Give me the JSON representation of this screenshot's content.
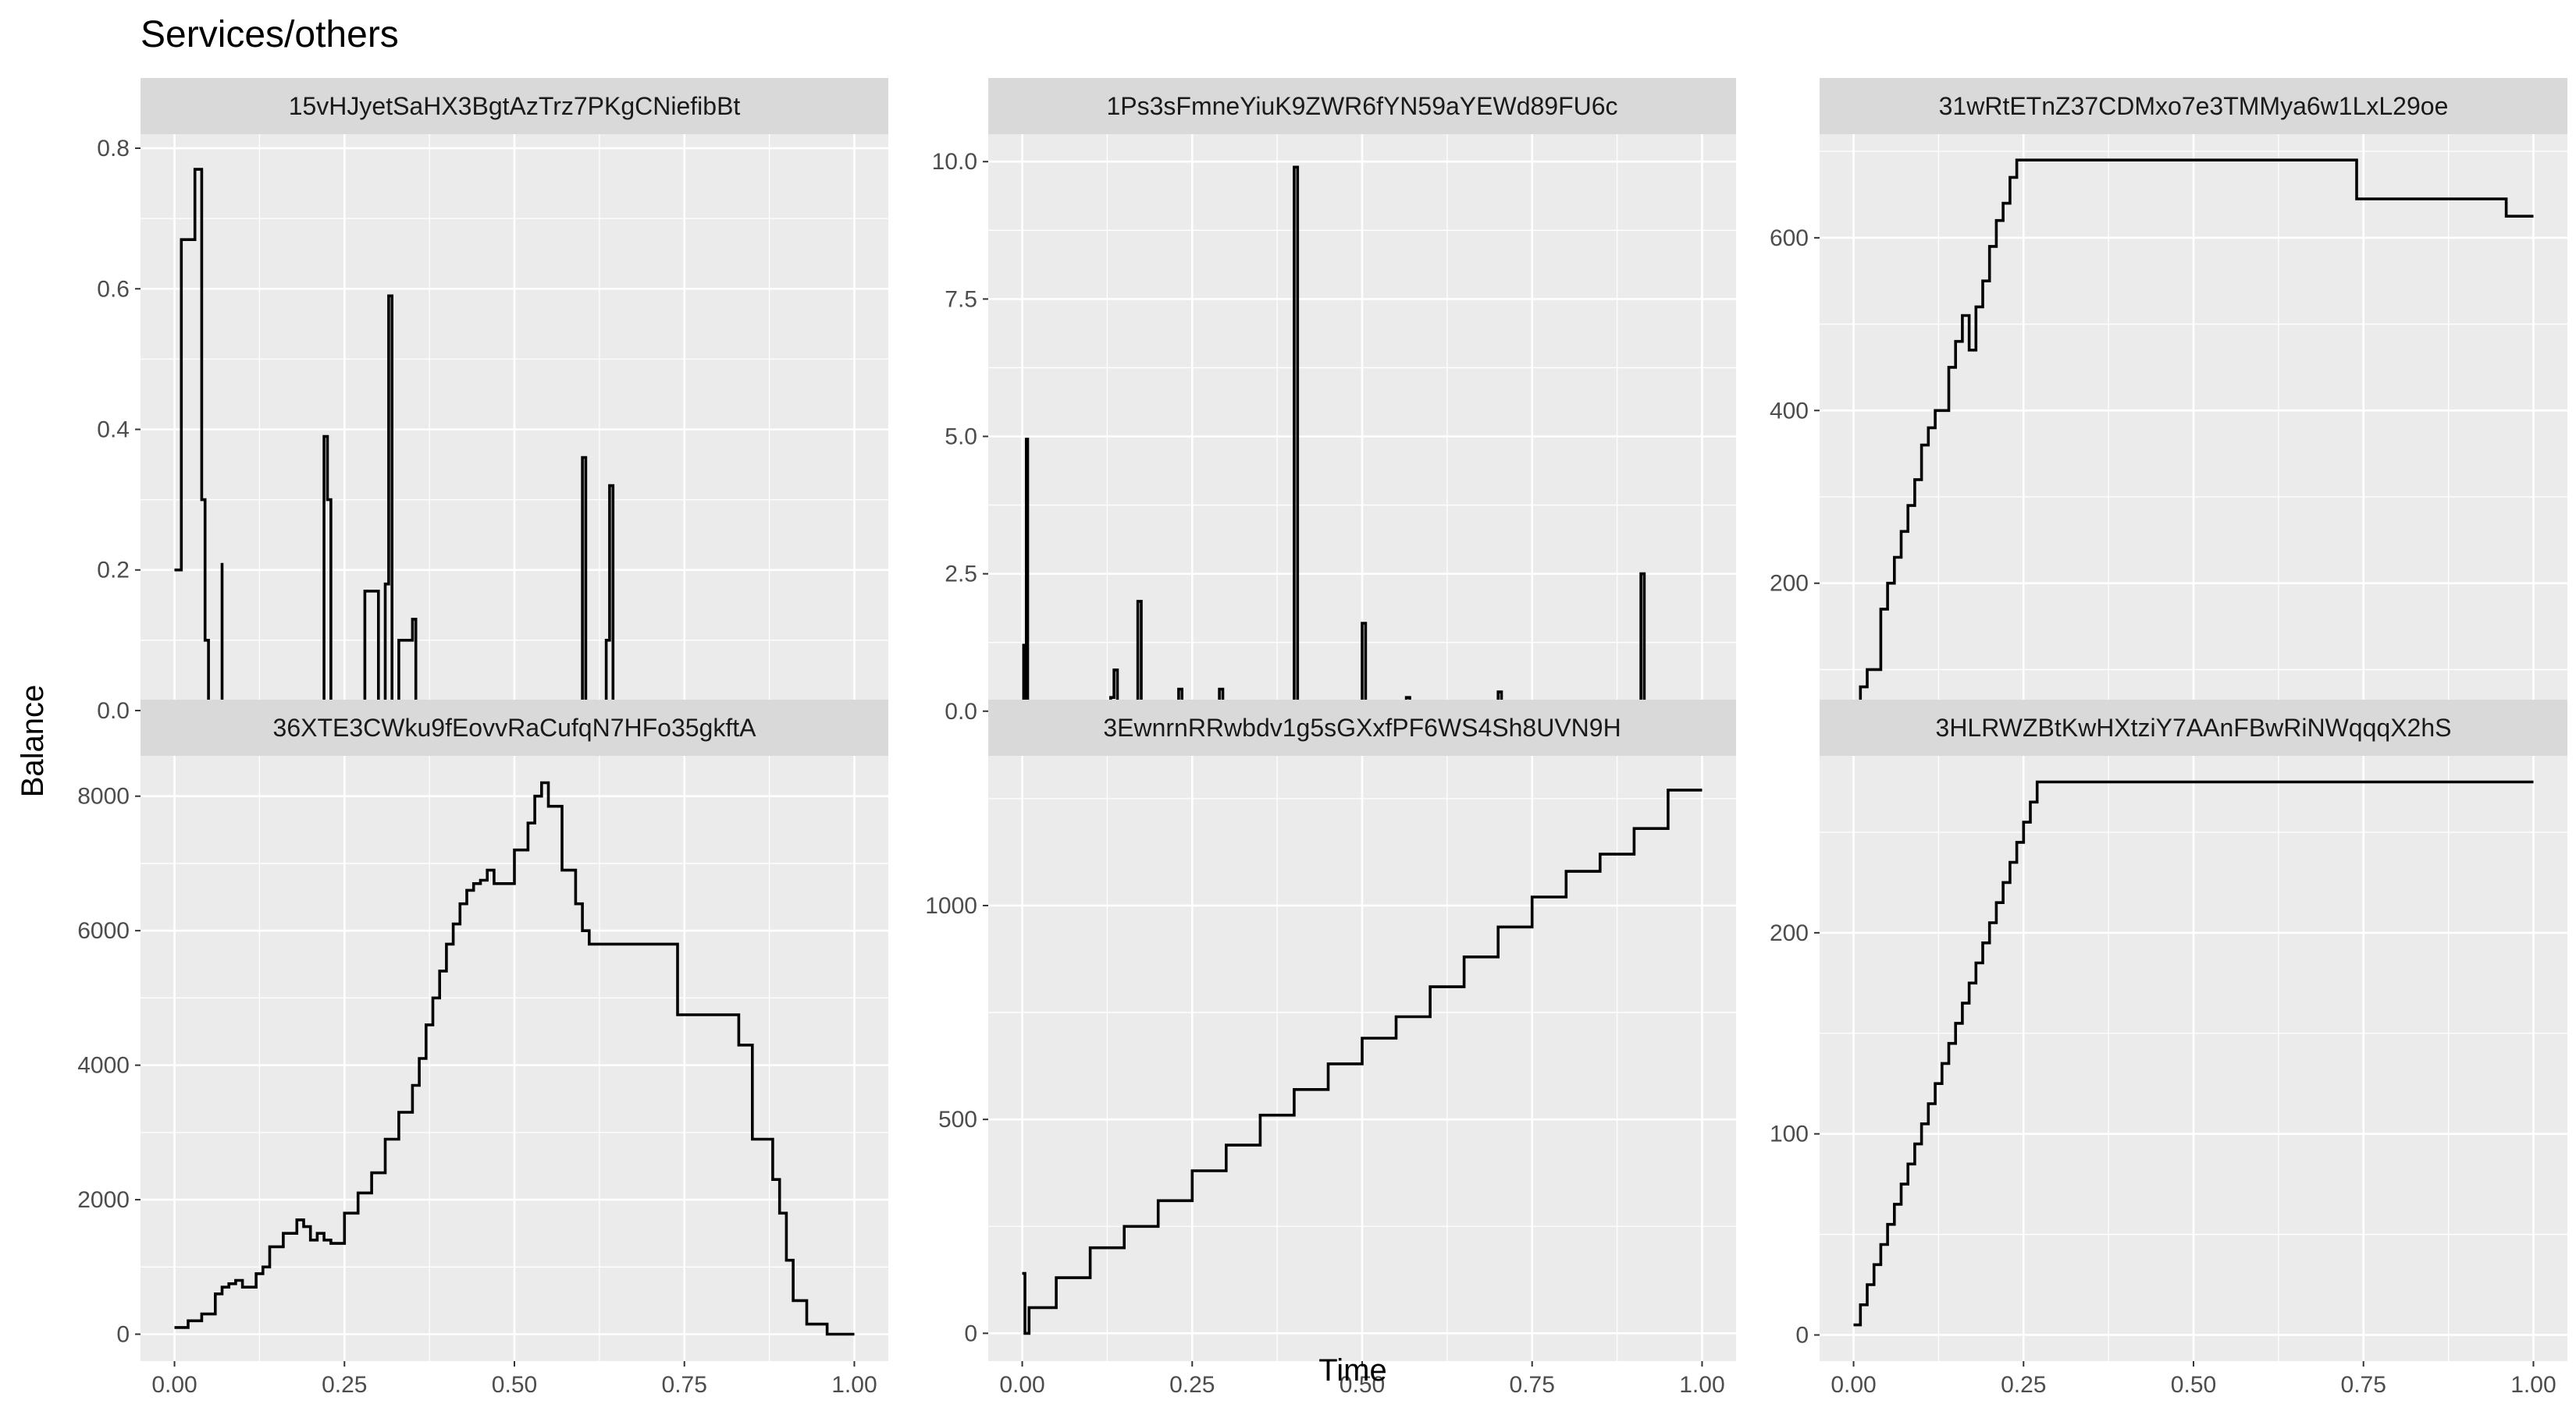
{
  "chart_data": {
    "type": "line",
    "title": "Services/others",
    "xlabel": "Time",
    "ylabel": "Balance",
    "grid": true,
    "facets": [
      {
        "strip": "15vHJyetSaHX3BgtAzTrz7PKgCNiefibBt",
        "xlim": [
          -0.05,
          1.05
        ],
        "ylim": [
          -0.04,
          0.82
        ],
        "y_ticks": [
          0.0,
          0.2,
          0.4,
          0.6,
          0.8
        ],
        "y_tick_labels": [
          "0.0",
          "0.2",
          "0.4",
          "0.6",
          "0.8"
        ],
        "x_tick_labels": [],
        "x": [
          0.0,
          0.01,
          0.01,
          0.03,
          0.03,
          0.04,
          0.04,
          0.045,
          0.045,
          0.05,
          0.05,
          0.07,
          0.07,
          0.07,
          0.07,
          0.22,
          0.22,
          0.225,
          0.225,
          0.23,
          0.23,
          0.28,
          0.28,
          0.3,
          0.3,
          0.31,
          0.31,
          0.315,
          0.315,
          0.32,
          0.32,
          0.33,
          0.33,
          0.34,
          0.34,
          0.35,
          0.35,
          0.355,
          0.355,
          0.36,
          0.36,
          0.6,
          0.6,
          0.605,
          0.605,
          0.635,
          0.635,
          0.64,
          0.64,
          0.645,
          0.645,
          0.65,
          0.65,
          1.0
        ],
        "y": [
          0.2,
          0.2,
          0.67,
          0.67,
          0.77,
          0.77,
          0.3,
          0.3,
          0.1,
          0.1,
          0.0,
          0.0,
          0.21,
          0.21,
          0.0,
          0.0,
          0.39,
          0.39,
          0.3,
          0.3,
          0.0,
          0.0,
          0.17,
          0.17,
          0.0,
          0.0,
          0.18,
          0.18,
          0.59,
          0.59,
          0.0,
          0.0,
          0.1,
          0.1,
          0.1,
          0.1,
          0.13,
          0.13,
          0.0,
          0.0,
          0.0,
          0.0,
          0.36,
          0.36,
          0.0,
          0.0,
          0.1,
          0.1,
          0.32,
          0.32,
          0.0,
          0.0,
          0.0,
          0.0
        ]
      },
      {
        "strip": "1Ps3sFmneYiuK9ZWR6fYN59aYEWd89FU6c",
        "xlim": [
          -0.05,
          1.05
        ],
        "ylim": [
          -0.5,
          10.5
        ],
        "y_ticks": [
          0.0,
          2.5,
          5.0,
          7.5,
          10.0
        ],
        "y_tick_labels": [
          "0.0",
          "2.5",
          "5.0",
          "7.5",
          "10.0"
        ],
        "x_tick_labels": [],
        "x": [
          0.0,
          0.002,
          0.002,
          0.004,
          0.004,
          0.006,
          0.006,
          0.008,
          0.008,
          0.04,
          0.04,
          0.05,
          0.05,
          0.06,
          0.06,
          0.13,
          0.13,
          0.135,
          0.135,
          0.14,
          0.14,
          0.145,
          0.145,
          0.17,
          0.17,
          0.175,
          0.175,
          0.18,
          0.18,
          0.23,
          0.23,
          0.235,
          0.235,
          0.29,
          0.29,
          0.295,
          0.295,
          0.4,
          0.4,
          0.405,
          0.405,
          0.5,
          0.5,
          0.505,
          0.505,
          0.565,
          0.565,
          0.57,
          0.57,
          0.7,
          0.7,
          0.705,
          0.705,
          0.91,
          0.91,
          0.915,
          0.915,
          1.0
        ],
        "y": [
          0.0,
          0.0,
          1.2,
          1.2,
          0.0,
          0.0,
          4.95,
          4.95,
          0.0,
          0.0,
          0.1,
          0.1,
          0.0,
          0.0,
          0.0,
          0.0,
          0.25,
          0.25,
          0.75,
          0.75,
          0.0,
          0.0,
          0.0,
          0.0,
          2.0,
          2.0,
          0.0,
          0.0,
          0.0,
          0.0,
          0.4,
          0.4,
          0.0,
          0.0,
          0.4,
          0.4,
          0.0,
          0.0,
          9.9,
          9.9,
          0.0,
          0.0,
          1.6,
          1.6,
          0.0,
          0.0,
          0.25,
          0.25,
          0.0,
          0.0,
          0.35,
          0.35,
          0.0,
          0.0,
          2.5,
          2.5,
          0.05,
          0.05
        ]
      },
      {
        "strip": "31wRtETnZ37CDMxo7e3TMMya6w1LxL29oe",
        "xlim": [
          -0.05,
          1.05
        ],
        "ylim": [
          20,
          720
        ],
        "y_ticks": [
          200,
          400,
          600
        ],
        "y_tick_labels": [
          "200",
          "400",
          "600"
        ],
        "x_tick_labels": [],
        "x": [
          0.0,
          0.01,
          0.01,
          0.02,
          0.02,
          0.04,
          0.04,
          0.05,
          0.05,
          0.06,
          0.06,
          0.07,
          0.07,
          0.08,
          0.08,
          0.09,
          0.09,
          0.1,
          0.1,
          0.11,
          0.11,
          0.12,
          0.12,
          0.14,
          0.14,
          0.15,
          0.15,
          0.16,
          0.16,
          0.17,
          0.17,
          0.18,
          0.18,
          0.19,
          0.19,
          0.2,
          0.2,
          0.21,
          0.21,
          0.22,
          0.22,
          0.23,
          0.23,
          0.24,
          0.24,
          0.74,
          0.74,
          0.96,
          0.96,
          1.0
        ],
        "y": [
          50,
          50,
          80,
          80,
          100,
          100,
          170,
          170,
          200,
          200,
          230,
          230,
          260,
          260,
          290,
          290,
          320,
          320,
          360,
          360,
          380,
          380,
          400,
          400,
          450,
          450,
          480,
          480,
          510,
          510,
          470,
          470,
          520,
          520,
          550,
          550,
          590,
          590,
          620,
          620,
          640,
          640,
          670,
          670,
          690,
          690,
          645,
          645,
          625,
          625
        ]
      },
      {
        "strip": "36XTE3CWku9fEovvRaCufqN7HFo35gkftA",
        "xlim": [
          -0.05,
          1.05
        ],
        "ylim": [
          -400,
          8600
        ],
        "y_ticks": [
          0,
          2000,
          4000,
          6000,
          8000
        ],
        "y_tick_labels": [
          "0",
          "2000",
          "4000",
          "6000",
          "8000"
        ],
        "x_ticks": [
          0.0,
          0.25,
          0.5,
          0.75,
          1.0
        ],
        "x_tick_labels": [
          "0.00",
          "0.25",
          "0.50",
          "0.75",
          "1.00"
        ],
        "x": [
          0.0,
          0.02,
          0.02,
          0.04,
          0.04,
          0.06,
          0.06,
          0.07,
          0.07,
          0.08,
          0.08,
          0.09,
          0.09,
          0.1,
          0.1,
          0.12,
          0.12,
          0.13,
          0.13,
          0.14,
          0.14,
          0.16,
          0.16,
          0.18,
          0.18,
          0.19,
          0.19,
          0.2,
          0.2,
          0.21,
          0.21,
          0.22,
          0.22,
          0.23,
          0.23,
          0.25,
          0.25,
          0.27,
          0.27,
          0.29,
          0.29,
          0.31,
          0.31,
          0.33,
          0.33,
          0.35,
          0.35,
          0.36,
          0.36,
          0.37,
          0.37,
          0.38,
          0.38,
          0.39,
          0.39,
          0.4,
          0.4,
          0.41,
          0.41,
          0.42,
          0.42,
          0.43,
          0.43,
          0.44,
          0.44,
          0.45,
          0.45,
          0.46,
          0.46,
          0.47,
          0.47,
          0.48,
          0.48,
          0.5,
          0.5,
          0.52,
          0.52,
          0.53,
          0.53,
          0.54,
          0.54,
          0.55,
          0.55,
          0.56,
          0.56,
          0.57,
          0.57,
          0.59,
          0.59,
          0.6,
          0.6,
          0.61,
          0.61,
          0.62,
          0.62,
          0.74,
          0.74,
          0.83,
          0.83,
          0.85,
          0.85,
          0.88,
          0.88,
          0.89,
          0.89,
          0.9,
          0.9,
          0.91,
          0.91,
          0.93,
          0.93,
          0.96,
          0.96,
          1.0
        ],
        "y": [
          100,
          100,
          200,
          200,
          300,
          300,
          600,
          600,
          700,
          700,
          750,
          750,
          800,
          800,
          700,
          700,
          900,
          900,
          1000,
          1000,
          1300,
          1300,
          1500,
          1500,
          1700,
          1700,
          1600,
          1600,
          1400,
          1400,
          1500,
          1500,
          1400,
          1400,
          1350,
          1350,
          1800,
          1800,
          2100,
          2100,
          2400,
          2400,
          2900,
          2900,
          3300,
          3300,
          3700,
          3700,
          4100,
          4100,
          4600,
          4600,
          5000,
          5000,
          5400,
          5400,
          5800,
          5800,
          6100,
          6100,
          6400,
          6400,
          6600,
          6600,
          6700,
          6700,
          6750,
          6750,
          6900,
          6900,
          6700,
          6700,
          6700,
          6700,
          7200,
          7200,
          7600,
          7600,
          8000,
          8000,
          8200,
          8200,
          7850,
          7850,
          7850,
          7850,
          6900,
          6900,
          6400,
          6400,
          6000,
          6000,
          5800,
          5800,
          5800,
          5800,
          4750,
          4750,
          4300,
          4300,
          2900,
          2900,
          2300,
          2300,
          1800,
          1800,
          1100,
          1100,
          500,
          500,
          150,
          150,
          0,
          0
        ]
      },
      {
        "strip": "3EwnrnRRwbdv1g5sGXxfPF6WS4Sh8UVN9H",
        "xlim": [
          -0.05,
          1.05
        ],
        "ylim": [
          -65,
          1350
        ],
        "y_ticks": [
          0,
          500,
          1000
        ],
        "y_tick_labels": [
          "0",
          "500",
          "1000"
        ],
        "x_ticks": [
          0.0,
          0.25,
          0.5,
          0.75,
          1.0
        ],
        "x_tick_labels": [
          "0.00",
          "0.25",
          "0.50",
          "0.75",
          "1.00"
        ],
        "x": [
          0.0,
          0.004,
          0.004,
          0.01,
          0.01,
          0.05,
          0.05,
          0.1,
          0.1,
          0.15,
          0.15,
          0.2,
          0.2,
          0.25,
          0.25,
          0.3,
          0.3,
          0.35,
          0.35,
          0.4,
          0.4,
          0.45,
          0.45,
          0.5,
          0.5,
          0.55,
          0.55,
          0.6,
          0.6,
          0.65,
          0.65,
          0.7,
          0.7,
          0.75,
          0.75,
          0.8,
          0.8,
          0.85,
          0.85,
          0.9,
          0.9,
          0.95,
          0.95,
          1.0
        ],
        "y": [
          140,
          140,
          0,
          0,
          60,
          60,
          130,
          130,
          200,
          200,
          250,
          250,
          310,
          310,
          380,
          380,
          440,
          440,
          510,
          510,
          570,
          570,
          630,
          630,
          690,
          690,
          740,
          740,
          810,
          810,
          880,
          880,
          950,
          950,
          1020,
          1020,
          1080,
          1080,
          1120,
          1120,
          1180,
          1180,
          1270,
          1270
        ]
      },
      {
        "strip": "3HLRWZBtKwHXtziY7AAnFBwRiNWqqqX2hS",
        "xlim": [
          -0.05,
          1.05
        ],
        "ylim": [
          -13,
          288
        ],
        "y_ticks": [
          0,
          100,
          200
        ],
        "y_tick_labels": [
          "0",
          "100",
          "200"
        ],
        "x_ticks": [
          0.0,
          0.25,
          0.5,
          0.75,
          1.0
        ],
        "x_tick_labels": [
          "0.00",
          "0.25",
          "0.50",
          "0.75",
          "1.00"
        ],
        "x": [
          0.0,
          0.01,
          0.01,
          0.02,
          0.02,
          0.03,
          0.03,
          0.04,
          0.04,
          0.05,
          0.05,
          0.06,
          0.06,
          0.07,
          0.07,
          0.08,
          0.08,
          0.09,
          0.09,
          0.1,
          0.1,
          0.11,
          0.11,
          0.12,
          0.12,
          0.13,
          0.13,
          0.14,
          0.14,
          0.15,
          0.15,
          0.16,
          0.16,
          0.17,
          0.17,
          0.18,
          0.18,
          0.19,
          0.19,
          0.2,
          0.2,
          0.21,
          0.21,
          0.22,
          0.22,
          0.23,
          0.23,
          0.24,
          0.24,
          0.25,
          0.25,
          0.26,
          0.26,
          0.27,
          0.27,
          0.28,
          0.28,
          1.0
        ],
        "y": [
          5,
          5,
          15,
          15,
          25,
          25,
          35,
          35,
          45,
          45,
          55,
          55,
          65,
          65,
          75,
          75,
          85,
          85,
          95,
          95,
          105,
          105,
          115,
          115,
          125,
          125,
          135,
          135,
          145,
          145,
          155,
          155,
          165,
          165,
          175,
          175,
          185,
          185,
          195,
          195,
          205,
          205,
          215,
          215,
          225,
          225,
          235,
          235,
          245,
          245,
          255,
          255,
          265,
          265,
          275,
          275,
          275,
          275
        ]
      }
    ]
  }
}
